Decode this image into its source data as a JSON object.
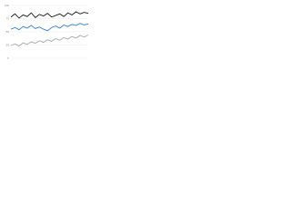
{
  "chart_data": {
    "type": "line",
    "categories": [
      null,
      null,
      null,
      null,
      null,
      null,
      null,
      null,
      null,
      null,
      null,
      null,
      null,
      null,
      null,
      null,
      null,
      null,
      null,
      null
    ],
    "series": [
      {
        "name": null,
        "color": "#1a1a1a",
        "values": [
          78,
          84,
          76,
          82,
          79,
          86,
          77,
          83,
          80,
          85,
          78,
          81,
          84,
          79,
          86,
          82,
          88,
          84,
          87,
          85
        ]
      },
      {
        "name": null,
        "color": "#2f7fd8",
        "values": [
          55,
          58,
          54,
          60,
          57,
          62,
          56,
          59,
          55,
          52,
          58,
          61,
          57,
          63,
          60,
          64,
          62,
          66,
          63,
          65
        ]
      },
      {
        "name": null,
        "color": "#a9a9a9",
        "values": [
          24,
          27,
          23,
          29,
          26,
          31,
          28,
          33,
          30,
          35,
          32,
          37,
          34,
          39,
          36,
          41,
          38,
          43,
          40,
          44
        ]
      }
    ],
    "ylim": [
      0,
      100
    ],
    "yticks": [
      0,
      25,
      50,
      75,
      100
    ],
    "grid": true
  }
}
